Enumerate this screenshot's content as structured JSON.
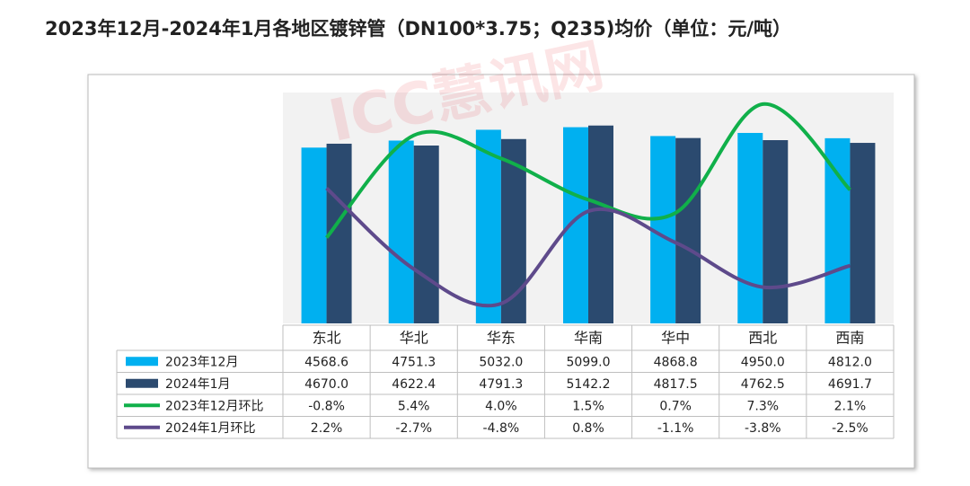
{
  "chart_data": {
    "type": "bar-line-table",
    "title": "2023年12月-2024年1月各地区镀锌管（DN100*3.75；Q235)均价（单位：元/吨）",
    "watermark": "ICC慧讯网",
    "categories": [
      "东北",
      "华北",
      "华东",
      "华南",
      "华中",
      "西北",
      "西南"
    ],
    "ylim": [
      0,
      6000
    ],
    "y2lim": [
      -6,
      8
    ],
    "series": [
      {
        "name": "2023年12月",
        "color": "#00b0f0",
        "type": "bar",
        "values": [
          4568.6,
          4751.3,
          5032.0,
          5099.0,
          4868.8,
          4950.0,
          4812.0
        ],
        "value_labels": [
          "4568.6",
          "4751.3",
          "5032.0",
          "5099.0",
          "4868.8",
          "4950.0",
          "4812.0"
        ]
      },
      {
        "name": "2024年1月",
        "color": "#2b4a6f",
        "type": "bar",
        "values": [
          4670.0,
          4622.4,
          4791.3,
          5142.2,
          4817.5,
          4762.5,
          4691.7
        ],
        "value_labels": [
          "4670.0",
          "4622.4",
          "4791.3",
          "5142.2",
          "4817.5",
          "4762.5",
          "4691.7"
        ]
      },
      {
        "name": "2023年12月环比",
        "color": "#10b04a",
        "type": "line",
        "axis": "y2",
        "values": [
          -0.8,
          5.4,
          4.0,
          1.5,
          0.7,
          7.3,
          2.1
        ],
        "value_labels": [
          "-0.8%",
          "5.4%",
          "4.0%",
          "1.5%",
          "0.7%",
          "7.3%",
          "2.1%"
        ]
      },
      {
        "name": "2024年1月环比",
        "color": "#5e4a8b",
        "type": "line",
        "axis": "y2",
        "values": [
          2.2,
          -2.7,
          -4.8,
          0.8,
          -1.1,
          -3.8,
          -2.5
        ],
        "value_labels": [
          "2.2%",
          "-2.7%",
          "-4.8%",
          "0.8%",
          "-1.1%",
          "-3.8%",
          "-2.5%"
        ]
      }
    ]
  }
}
